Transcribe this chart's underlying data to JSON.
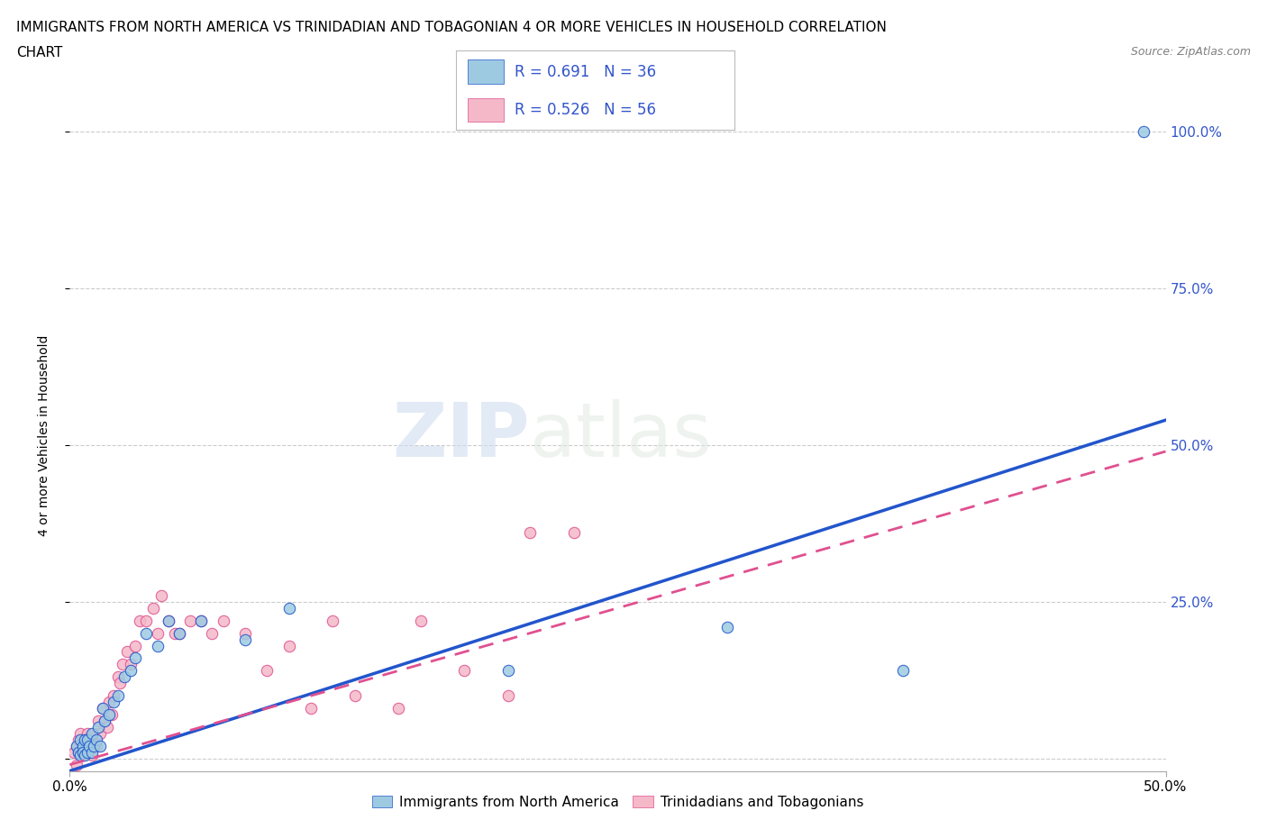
{
  "title_line1": "IMMIGRANTS FROM NORTH AMERICA VS TRINIDADIAN AND TOBAGONIAN 4 OR MORE VEHICLES IN HOUSEHOLD CORRELATION",
  "title_line2": "CHART",
  "source": "Source: ZipAtlas.com",
  "ylabel": "4 or more Vehicles in Household",
  "xlim": [
    0.0,
    0.5
  ],
  "ylim": [
    -0.02,
    1.05
  ],
  "legend_label1": "R = 0.691   N = 36",
  "legend_label2": "R = 0.526   N = 56",
  "legend_label_bottom1": "Immigrants from North America",
  "legend_label_bottom2": "Trinidadians and Tobagonians",
  "color_blue": "#9ecae1",
  "color_pink": "#f4b8c8",
  "line_color_blue": "#2255cc",
  "line_color_pink": "#e05090",
  "watermark_zip": "ZIP",
  "watermark_atlas": "atlas",
  "bg_color": "#ffffff",
  "grid_color": "#cccccc",
  "title_fontsize": 11,
  "axis_label_fontsize": 10,
  "tick_fontsize": 11,
  "blue_scatter_x": [
    0.003,
    0.004,
    0.005,
    0.005,
    0.006,
    0.006,
    0.007,
    0.007,
    0.008,
    0.008,
    0.009,
    0.01,
    0.01,
    0.011,
    0.012,
    0.013,
    0.014,
    0.015,
    0.016,
    0.018,
    0.02,
    0.022,
    0.025,
    0.028,
    0.03,
    0.035,
    0.04,
    0.045,
    0.05,
    0.06,
    0.08,
    0.1,
    0.2,
    0.3,
    0.38,
    0.49
  ],
  "blue_scatter_y": [
    0.02,
    0.01,
    0.03,
    0.005,
    0.02,
    0.01,
    0.03,
    0.005,
    0.01,
    0.03,
    0.02,
    0.04,
    0.01,
    0.02,
    0.03,
    0.05,
    0.02,
    0.08,
    0.06,
    0.07,
    0.09,
    0.1,
    0.13,
    0.14,
    0.16,
    0.2,
    0.18,
    0.22,
    0.2,
    0.22,
    0.19,
    0.24,
    0.14,
    0.21,
    0.14,
    1.0
  ],
  "pink_scatter_x": [
    0.002,
    0.003,
    0.003,
    0.004,
    0.004,
    0.005,
    0.005,
    0.006,
    0.006,
    0.007,
    0.007,
    0.008,
    0.008,
    0.009,
    0.01,
    0.01,
    0.011,
    0.012,
    0.013,
    0.014,
    0.015,
    0.016,
    0.017,
    0.018,
    0.019,
    0.02,
    0.022,
    0.023,
    0.024,
    0.026,
    0.028,
    0.03,
    0.032,
    0.035,
    0.038,
    0.04,
    0.042,
    0.045,
    0.048,
    0.05,
    0.055,
    0.06,
    0.065,
    0.07,
    0.08,
    0.09,
    0.1,
    0.11,
    0.12,
    0.13,
    0.15,
    0.16,
    0.18,
    0.2,
    0.21,
    0.23
  ],
  "pink_scatter_y": [
    0.01,
    0.02,
    -0.01,
    0.01,
    0.03,
    0.01,
    0.04,
    0.02,
    0.005,
    0.03,
    0.01,
    0.02,
    0.04,
    0.01,
    0.03,
    0.005,
    0.04,
    0.02,
    0.06,
    0.04,
    0.08,
    0.06,
    0.05,
    0.09,
    0.07,
    0.1,
    0.13,
    0.12,
    0.15,
    0.17,
    0.15,
    0.18,
    0.22,
    0.22,
    0.24,
    0.2,
    0.26,
    0.22,
    0.2,
    0.2,
    0.22,
    0.22,
    0.2,
    0.22,
    0.2,
    0.14,
    0.18,
    0.08,
    0.22,
    0.1,
    0.08,
    0.22,
    0.14,
    0.1,
    0.36,
    0.36
  ],
  "blue_line_x": [
    0.0,
    0.5
  ],
  "blue_line_y": [
    -0.02,
    0.54
  ],
  "pink_line_x": [
    0.0,
    0.5
  ],
  "pink_line_y": [
    -0.01,
    0.49
  ]
}
